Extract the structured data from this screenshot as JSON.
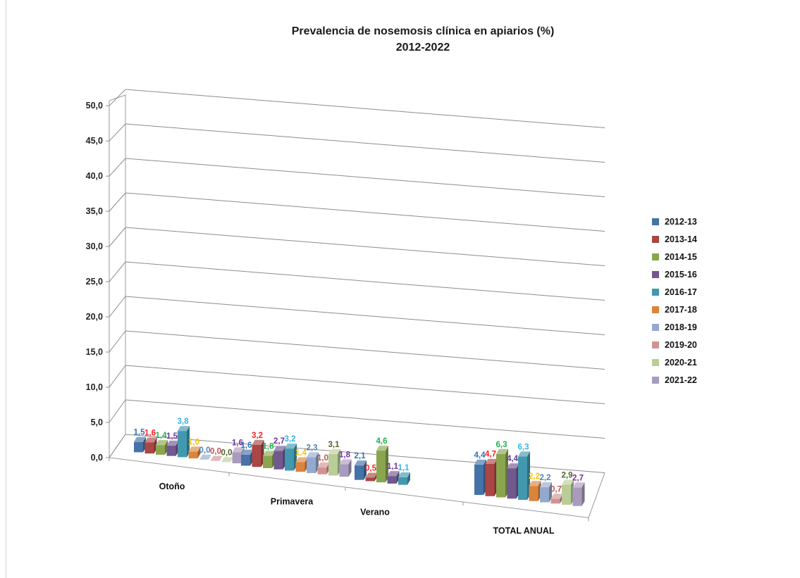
{
  "chart_data": {
    "type": "bar",
    "title_lines": [
      "Prevalencia de nosemosis clínica en apiarios (%)",
      "2012-2022"
    ],
    "categories": [
      "Otoño",
      "Primavera",
      "Verano",
      "TOTAL ANUAL"
    ],
    "y_ticks": [
      "0,0",
      "5,0",
      "10,0",
      "15,0",
      "20,0",
      "25,0",
      "30,0",
      "35,0",
      "40,0",
      "45,0",
      "50,0"
    ],
    "ylim": [
      0,
      50
    ],
    "grid": true,
    "legend_position": "right",
    "series": [
      {
        "name": "2012-13",
        "color": "#4572A7",
        "label_color": "#2E75B6",
        "values": [
          1.5,
          1.6,
          2.1,
          4.4
        ],
        "labels": [
          "1,5",
          "1,6",
          "2,1",
          "4,4"
        ]
      },
      {
        "name": "2013-14",
        "color": "#AA4643",
        "label_color": "#FF1F1F",
        "values": [
          1.6,
          3.2,
          0.5,
          4.7
        ],
        "labels": [
          "1,6",
          "3,2",
          "0,5",
          "4,7"
        ]
      },
      {
        "name": "2014-15",
        "color": "#89A54E",
        "label_color": "#22B14C",
        "values": [
          1.4,
          1.8,
          4.6,
          6.3
        ],
        "labels": [
          "1,4",
          "1,8",
          "4,6",
          "6,3"
        ]
      },
      {
        "name": "2015-16",
        "color": "#71588F",
        "label_color": "#7030A0",
        "values": [
          1.5,
          2.7,
          1.1,
          4.4
        ],
        "labels": [
          "1,5",
          "2,7",
          "1,1",
          "4,4"
        ]
      },
      {
        "name": "2016-17",
        "color": "#4198AF",
        "label_color": "#33B5E5",
        "values": [
          3.8,
          3.2,
          1.1,
          6.3
        ],
        "labels": [
          "3,8",
          "3,2",
          "1,1",
          "6,3"
        ]
      },
      {
        "name": "2017-18",
        "color": "#DB843D",
        "label_color": "#FFC000",
        "values": [
          1.0,
          1.4,
          null,
          2.2
        ],
        "labels": [
          "1,0",
          "1,4",
          "",
          "2,2"
        ]
      },
      {
        "name": "2018-19",
        "color": "#93A9CF",
        "label_color": "#4F81BD",
        "values": [
          0.0,
          2.3,
          null,
          2.2
        ],
        "labels": [
          "0,0",
          "2,3",
          "",
          "2,2"
        ]
      },
      {
        "name": "2019-20",
        "color": "#D19392",
        "label_color": "#C0504D",
        "values": [
          0.0,
          1.0,
          null,
          0.7
        ],
        "labels": [
          "0,0",
          "1,0",
          "",
          "0,7"
        ]
      },
      {
        "name": "2020-21",
        "color": "#B9CD96",
        "label_color": "#4F6228",
        "values": [
          0.0,
          3.1,
          null,
          2.9
        ],
        "labels": [
          "0,0",
          "3,1",
          "",
          "2,9"
        ]
      },
      {
        "name": "2021-22",
        "color": "#A99BBD",
        "label_color": "#7030A0",
        "values": [
          1.6,
          1.8,
          null,
          2.7
        ],
        "labels": [
          "1,6",
          "1,8",
          "",
          "2,7"
        ]
      }
    ]
  }
}
